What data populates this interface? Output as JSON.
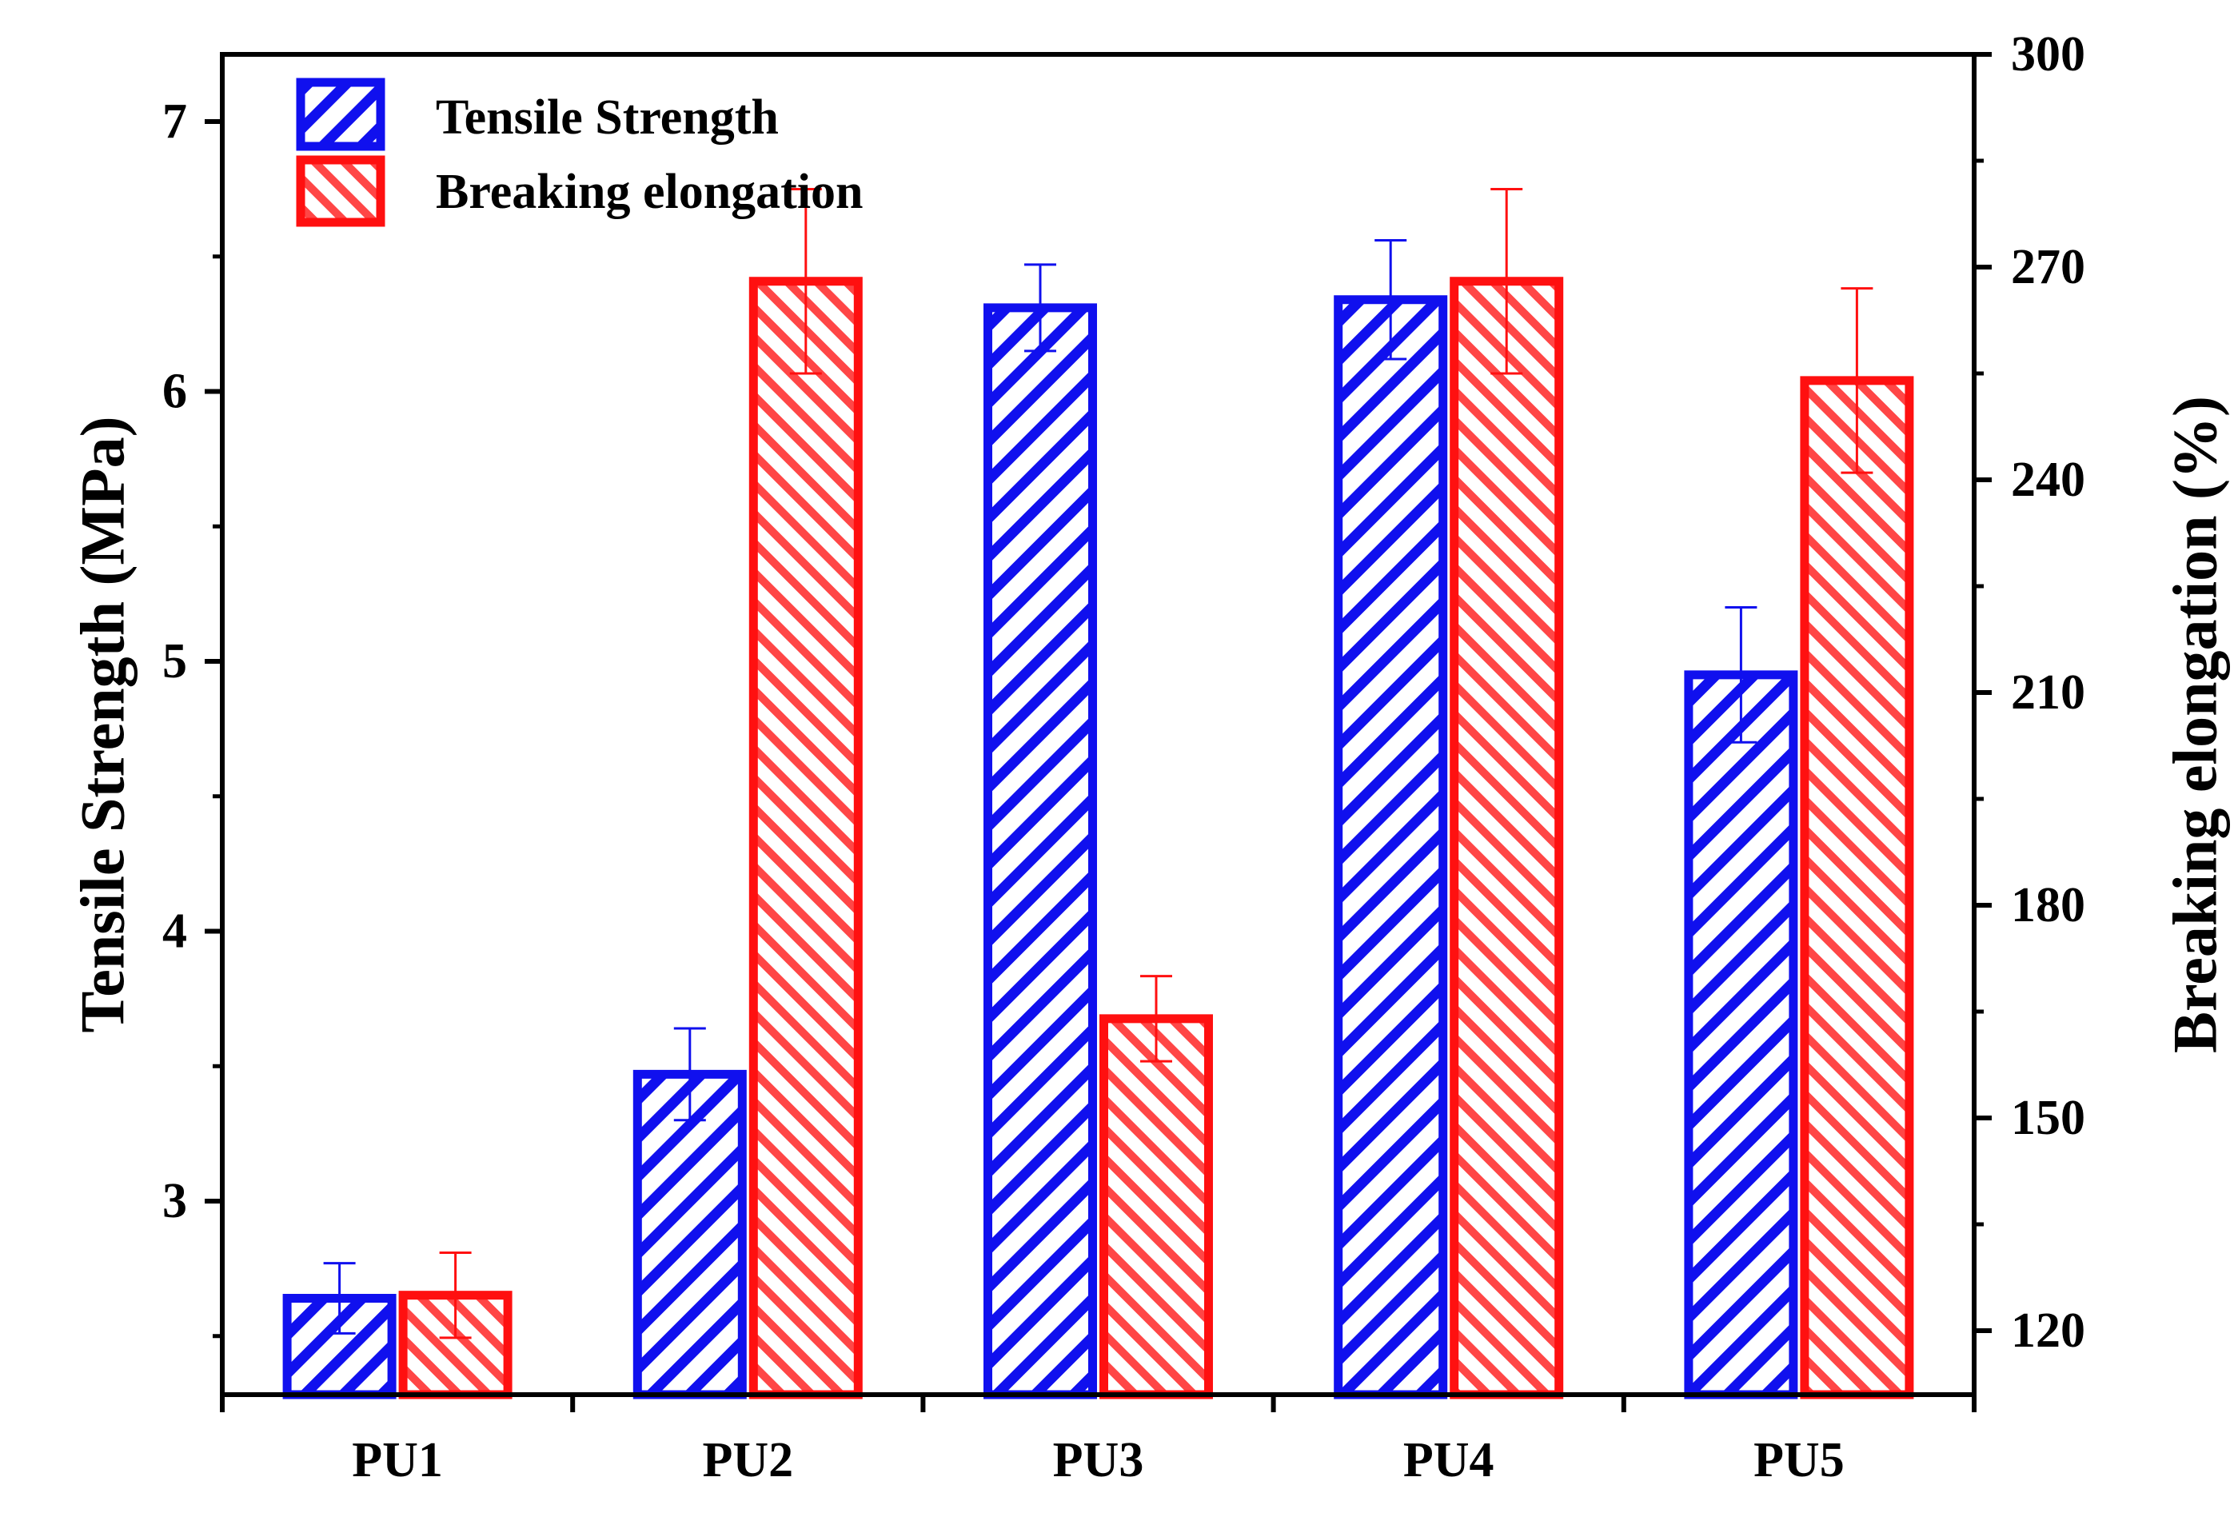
{
  "chart_data": {
    "type": "bar",
    "categories": [
      "PU1",
      "PU2",
      "PU3",
      "PU4",
      "PU5"
    ],
    "left_axis": {
      "label": "Tensile Strength (MPa)",
      "ylim": [
        2.3,
        7.3
      ],
      "ticks": [
        3,
        4,
        5,
        6,
        7
      ],
      "tick_labels": [
        "3",
        "4",
        "5",
        "6",
        "7"
      ]
    },
    "right_axis": {
      "label": "Breaking elongation (%)",
      "ylim": [
        110,
        300
      ],
      "ticks": [
        120,
        150,
        180,
        210,
        240,
        270,
        300
      ],
      "tick_labels": [
        "120",
        "150",
        "180",
        "210",
        "240",
        "270",
        "300"
      ]
    },
    "series": [
      {
        "name": "Tensile Strength",
        "axis": "left",
        "color": "#1010ee",
        "values": [
          2.64,
          3.47,
          6.31,
          6.34,
          4.95
        ],
        "errors": [
          0.13,
          0.17,
          0.16,
          0.22,
          0.25
        ]
      },
      {
        "name": "Breaking elongation",
        "axis": "right",
        "color": "#ff1010",
        "values": [
          125,
          268,
          164,
          268,
          254
        ],
        "errors": [
          6,
          13,
          6,
          13,
          13
        ]
      }
    ],
    "legend": {
      "position": "top-left",
      "entries": [
        "Tensile Strength",
        "Breaking elongation"
      ]
    }
  }
}
